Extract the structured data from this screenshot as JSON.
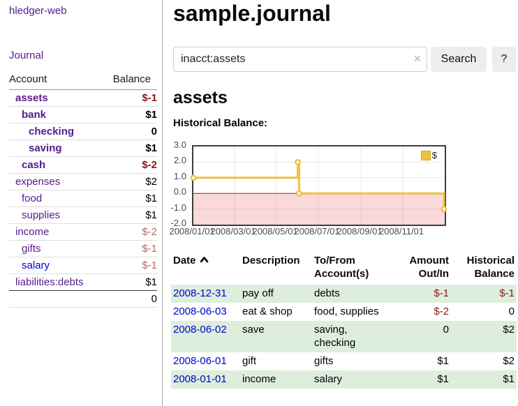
{
  "brand": {
    "title": "hledger-web"
  },
  "sidebar": {
    "journal_link": "Journal",
    "accounts": {
      "col_account": "Account",
      "col_balance": "Balance",
      "rows": [
        {
          "name": "assets",
          "indent": 1,
          "bold": true,
          "balance": "$-1",
          "balance_class": "neg"
        },
        {
          "name": "bank",
          "indent": 2,
          "bold": true,
          "balance": "$1",
          "balance_class": ""
        },
        {
          "name": "checking",
          "indent": 3,
          "bold": true,
          "balance": "0",
          "balance_class": ""
        },
        {
          "name": "saving",
          "indent": 3,
          "bold": true,
          "balance": "$1",
          "balance_class": ""
        },
        {
          "name": "cash",
          "indent": 2,
          "bold": true,
          "balance": "$-2",
          "balance_class": "neg"
        },
        {
          "name": "expenses",
          "indent": 1,
          "bold": false,
          "balance": "$2",
          "balance_class": ""
        },
        {
          "name": "food",
          "indent": 2,
          "bold": false,
          "balance": "$1",
          "balance_class": ""
        },
        {
          "name": "supplies",
          "indent": 2,
          "bold": false,
          "balance": "$1",
          "balance_class": ""
        },
        {
          "name": "income",
          "indent": 1,
          "bold": false,
          "balance": "$-2",
          "balance_class": "negsoft"
        },
        {
          "name": "gifts",
          "indent": 2,
          "bold": false,
          "balance": "$-1",
          "balance_class": "negsoft"
        },
        {
          "name": "salary",
          "indent": 2,
          "bold": false,
          "link": "blue",
          "balance": "$-1",
          "balance_class": "negsoft"
        },
        {
          "name": "liabilities:debts",
          "indent": 1,
          "bold": false,
          "balance": "$1",
          "balance_class": ""
        }
      ],
      "total": "0"
    }
  },
  "main": {
    "title": "sample.journal",
    "search": {
      "value": "inacct:assets",
      "clear": "×",
      "search_button": "Search",
      "help_button": "?"
    },
    "account_heading": "assets",
    "section_label": "Historical Balance:"
  },
  "chart_data": {
    "type": "line",
    "style": "step",
    "title": "Historical Balance",
    "series": [
      {
        "name": "$",
        "color": "#edc240",
        "points": [
          [
            "2008-01-01",
            1
          ],
          [
            "2008-06-01",
            2
          ],
          [
            "2008-06-03",
            0
          ],
          [
            "2008-12-31",
            -1
          ]
        ]
      }
    ],
    "x_range": [
      "2008-01-01",
      "2009-01-01"
    ],
    "ylim": [
      -2,
      3
    ],
    "x_ticks": [
      "2008/01/01",
      "2008/03/01",
      "2008/05/01",
      "2008/07/01",
      "2008/09/01",
      "2008/11/01"
    ],
    "y_ticks": [
      "3.0",
      "2.0",
      "1.0",
      "0.0",
      "-1.0",
      "-2.0"
    ],
    "grid": true,
    "negative_region_color": "#f9d9d9",
    "zero_line_color": "#8b2a2a",
    "legend": {
      "label": "$",
      "position": "top-right"
    }
  },
  "register": {
    "headers": {
      "date": "Date",
      "description": "Description",
      "accounts": "To/From Account(s)",
      "amount": "Amount Out/In",
      "balance": "Historical Balance"
    },
    "sort": {
      "column": "date",
      "direction": "ascending"
    },
    "rows": [
      {
        "date": "2008-12-31",
        "description": "pay off",
        "accounts": "debts",
        "amount": "$-1",
        "amount_negative": true,
        "balance": "$-1",
        "balance_negative": true,
        "shaded": true
      },
      {
        "date": "2008-06-03",
        "description": "eat & shop",
        "accounts": "food, supplies",
        "amount": "$-2",
        "amount_negative": true,
        "balance": "0",
        "balance_negative": false,
        "shaded": false
      },
      {
        "date": "2008-06-02",
        "description": "save",
        "accounts": "saving,\nchecking",
        "amount": "0",
        "amount_negative": false,
        "balance": "$2",
        "balance_negative": false,
        "shaded": true
      },
      {
        "date": "2008-06-01",
        "description": "gift",
        "accounts": "gifts",
        "amount": "$1",
        "amount_negative": false,
        "balance": "$2",
        "balance_negative": false,
        "shaded": false
      },
      {
        "date": "2008-01-01",
        "description": "income",
        "accounts": "salary",
        "amount": "$1",
        "amount_negative": false,
        "balance": "$1",
        "balance_negative": false,
        "shaded": true
      }
    ]
  },
  "colors": {
    "link_visited_purple": "#551a8b",
    "link_blue": "#0000cc",
    "negative_strong": "#8b1717",
    "negative_soft": "#b36b6b",
    "row_green": "#ddeedd",
    "series_gold": "#edc240"
  }
}
